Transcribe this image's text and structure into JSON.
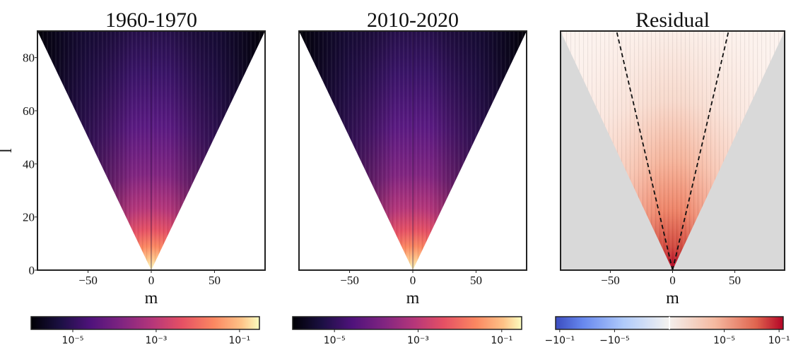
{
  "chart_data": [
    {
      "type": "heatmap",
      "title": "1960-1970",
      "xlabel": "m",
      "ylabel": "l",
      "xlim": [
        -90,
        90
      ],
      "ylim": [
        0,
        90
      ],
      "xticks": [
        {
          "value": -50,
          "label": "−50"
        },
        {
          "value": 0,
          "label": "0"
        },
        {
          "value": 50,
          "label": "50"
        }
      ],
      "yticks": [
        {
          "value": 0,
          "label": "0"
        },
        {
          "value": 20,
          "label": "20"
        },
        {
          "value": 40,
          "label": "40"
        },
        {
          "value": 60,
          "label": "60"
        },
        {
          "value": 80,
          "label": "80"
        }
      ],
      "colormap": "magma",
      "colorbar": {
        "scale": "log",
        "range": [
          1e-06,
          0.3
        ],
        "ticks": [
          {
            "value": 1e-05,
            "label": "10⁻⁵"
          },
          {
            "value": 0.001,
            "label": "10⁻³"
          },
          {
            "value": 0.1,
            "label": "10⁻¹"
          }
        ]
      },
      "region": "|m| ≤ l",
      "grid": false
    },
    {
      "type": "heatmap",
      "title": "2010-2020",
      "xlabel": "m",
      "xlim": [
        -90,
        90
      ],
      "ylim": [
        0,
        90
      ],
      "xticks": [
        {
          "value": -50,
          "label": "−50"
        },
        {
          "value": 0,
          "label": "0"
        },
        {
          "value": 50,
          "label": "50"
        }
      ],
      "colormap": "magma",
      "colorbar": {
        "scale": "log",
        "range": [
          1e-06,
          0.3
        ],
        "ticks": [
          {
            "value": 1e-05,
            "label": "10⁻⁵"
          },
          {
            "value": 0.001,
            "label": "10⁻³"
          },
          {
            "value": 0.1,
            "label": "10⁻¹"
          }
        ]
      },
      "region": "|m| ≤ l",
      "grid": false
    },
    {
      "type": "heatmap",
      "title": "Residual",
      "xlabel": "m",
      "xlim": [
        -90,
        90
      ],
      "ylim": [
        0,
        90
      ],
      "xticks": [
        {
          "value": -50,
          "label": "−50"
        },
        {
          "value": 0,
          "label": "0"
        },
        {
          "value": 50,
          "label": "50"
        }
      ],
      "colormap": "coolwarm",
      "background_color": "#d9d9d9",
      "colorbar": {
        "scale": "symlog",
        "ticks": [
          {
            "value": -0.1,
            "label": "−10⁻¹"
          },
          {
            "value": -1e-05,
            "label": "−10⁻⁵"
          },
          {
            "value": 1e-05,
            "label": "10⁻⁵"
          },
          {
            "value": 0.1,
            "label": "10⁻¹"
          }
        ]
      },
      "dashed_lines": [
        {
          "from": [
            0,
            0
          ],
          "to": [
            -45,
            90
          ]
        },
        {
          "from": [
            0,
            0
          ],
          "to": [
            45,
            90
          ]
        }
      ],
      "region": "|m| ≤ l",
      "grid": false
    }
  ]
}
